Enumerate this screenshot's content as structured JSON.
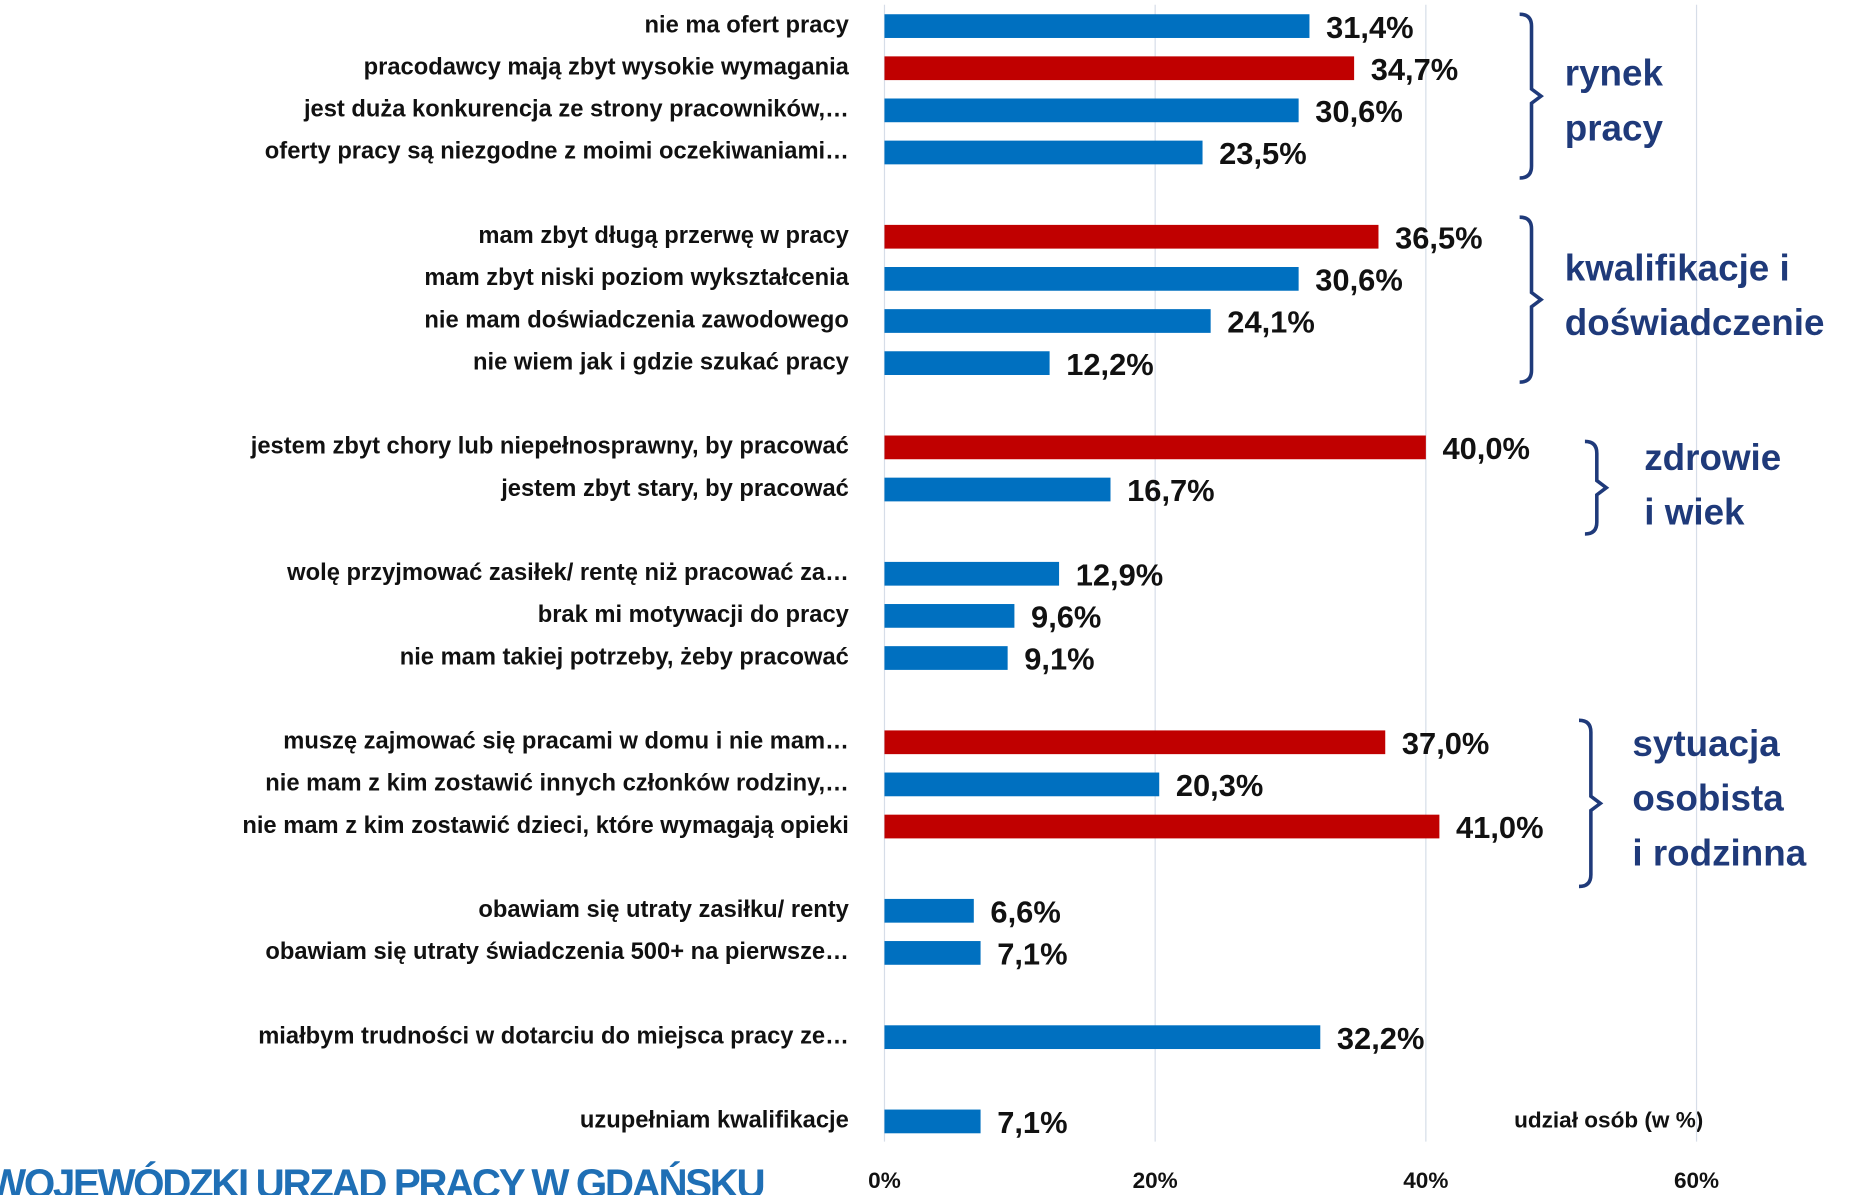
{
  "chart_data": {
    "type": "bar",
    "orientation": "horizontal",
    "categories": [
      "nie ma ofert pracy",
      "pracodawcy mają zbyt wysokie wymagania",
      "jest duża konkurencja ze strony pracowników,…",
      "oferty pracy są niezgodne z moimi oczekiwaniami…",
      null,
      "mam zbyt długą przerwę w pracy",
      "mam zbyt niski poziom wykształcenia",
      "nie mam doświadczenia zawodowego",
      "nie wiem jak i gdzie szukać pracy",
      null,
      "jestem zbyt chory lub niepełnosprawny, by pracować",
      "jestem zbyt stary, by pracować",
      null,
      "wolę przyjmować zasiłek/ rentę niż pracować za…",
      "brak mi motywacji do pracy",
      "nie mam takiej potrzeby, żeby pracować",
      null,
      "muszę zajmować się pracami w domu i nie mam…",
      "nie mam z kim zostawić innych członków rodziny,…",
      "nie mam z kim zostawić dzieci, które wymagają opieki",
      null,
      "obawiam się utraty zasiłku/ renty",
      "obawiam się utraty świadczenia 500+ na pierwsze…",
      null,
      "miałbym trudności w dotarciu do miejsca pracy ze…",
      null,
      "uzupełniam kwalifikacje"
    ],
    "values": [
      31.4,
      34.7,
      30.6,
      23.5,
      null,
      36.5,
      30.6,
      24.1,
      12.2,
      null,
      40.0,
      16.7,
      null,
      12.9,
      9.6,
      9.1,
      null,
      37.0,
      20.3,
      41.0,
      null,
      6.6,
      7.1,
      null,
      32.2,
      null,
      7.1
    ],
    "value_labels": [
      "31,4%",
      "34,7%",
      "30,6%",
      "23,5%",
      null,
      "36,5%",
      "30,6%",
      "24,1%",
      "12,2%",
      null,
      "40,0%",
      "16,7%",
      null,
      "12,9%",
      "9,6%",
      "9,1%",
      null,
      "37,0%",
      "20,3%",
      "41,0%",
      null,
      "6,6%",
      "7,1%",
      null,
      "32,2%",
      null,
      "7,1%"
    ],
    "colors": [
      "#0070c0",
      "#c00000",
      "#0070c0",
      "#0070c0",
      null,
      "#c00000",
      "#0070c0",
      "#0070c0",
      "#0070c0",
      null,
      "#c00000",
      "#0070c0",
      null,
      "#0070c0",
      "#0070c0",
      "#0070c0",
      null,
      "#c00000",
      "#0070c0",
      "#c00000",
      null,
      "#0070c0",
      "#0070c0",
      null,
      "#0070c0",
      null,
      "#0070c0"
    ],
    "xlim": [
      0,
      60
    ],
    "xticks": [
      {
        "value": 0,
        "label": "0%"
      },
      {
        "value": 20,
        "label": "20%"
      },
      {
        "value": 40,
        "label": "40%"
      },
      {
        "value": 60,
        "label": "60%"
      }
    ],
    "grid": true,
    "xlabel": "udział osób (w %)",
    "groups": [
      {
        "label": [
          "rynek",
          "pracy"
        ]
      },
      {
        "label": [
          "kwalifikacje i",
          "doświadczenie"
        ]
      },
      {
        "label": [
          "zdrowie",
          "i wiek"
        ]
      },
      {
        "label": [
          "sytuacja",
          "osobista",
          "i rodzinna"
        ]
      }
    ],
    "footer": "WOJEWÓDZKI URZĄD PRACY W GDAŃSKU"
  }
}
